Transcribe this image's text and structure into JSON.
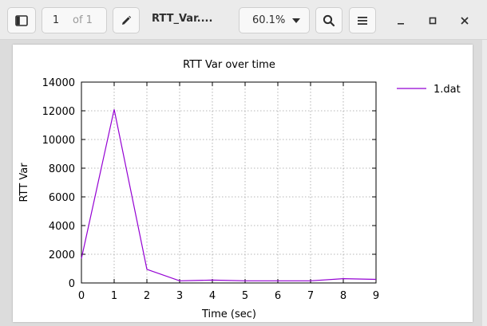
{
  "toolbar": {
    "page_current": "1",
    "page_of": "of 1",
    "doc_title": "RTT_Var....",
    "zoom": "60.1%",
    "icons": {
      "sidebar": "sidebar-toggle-icon",
      "edit": "pencil-icon",
      "zoom_dropdown": "chevron-down-icon",
      "search": "search-icon",
      "menu": "hamburger-menu-icon",
      "minimize": "minimize-icon",
      "maximize": "maximize-icon",
      "close": "close-icon"
    }
  },
  "chart_data": {
    "type": "line",
    "title": "RTT Var over time",
    "xlabel": "Time (sec)",
    "ylabel": "RTT Var",
    "xlim": [
      0,
      9
    ],
    "ylim": [
      0,
      14000
    ],
    "xticks": [
      "0",
      "1",
      "2",
      "3",
      "4",
      "5",
      "6",
      "7",
      "8",
      "9"
    ],
    "yticks": [
      "0",
      "2000",
      "4000",
      "6000",
      "8000",
      "10000",
      "12000",
      "14000"
    ],
    "grid": true,
    "legend_position": "top-right",
    "series": [
      {
        "name": "1.dat",
        "color": "#9400d3",
        "x": [
          0,
          1,
          2,
          3,
          4,
          5,
          6,
          7,
          8,
          9
        ],
        "y": [
          1700,
          12100,
          950,
          150,
          200,
          150,
          150,
          150,
          300,
          250
        ]
      }
    ]
  }
}
